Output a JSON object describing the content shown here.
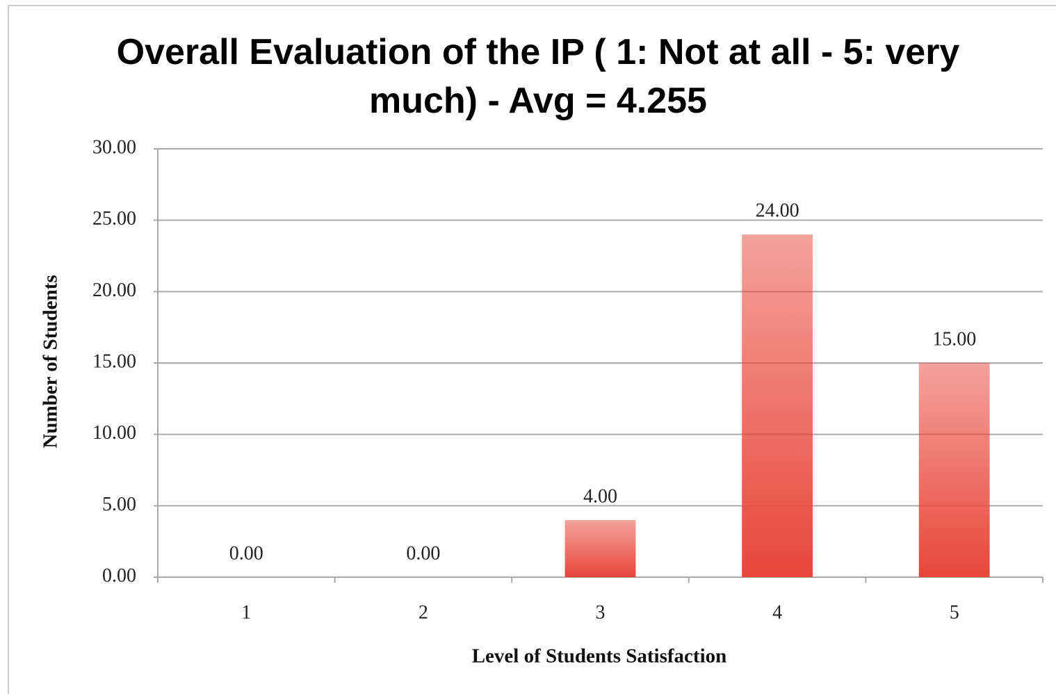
{
  "chart_data": {
    "type": "bar",
    "title": "Overall Evaluation of the IP ( 1: Not at all - 5: very much) - Avg = 4.255",
    "x_label": "Level of Students Satisfaction",
    "y_label": "Number of Students",
    "categories": [
      "1",
      "2",
      "3",
      "4",
      "5"
    ],
    "values": [
      0,
      0,
      4,
      24,
      15
    ],
    "value_labels": [
      "0.00",
      "0.00",
      "4.00",
      "24.00",
      "15.00"
    ],
    "color": "#e8463a",
    "ylim": [
      0,
      30
    ],
    "yticks": [
      {
        "value": 0,
        "label": "0.00"
      },
      {
        "value": 5,
        "label": "5.00"
      },
      {
        "value": 10,
        "label": "10.00"
      },
      {
        "value": 15,
        "label": "15.00"
      },
      {
        "value": 20,
        "label": "20.00"
      },
      {
        "value": 25,
        "label": "25.00"
      },
      {
        "value": 30,
        "label": "30.00"
      }
    ],
    "grid": true
  }
}
